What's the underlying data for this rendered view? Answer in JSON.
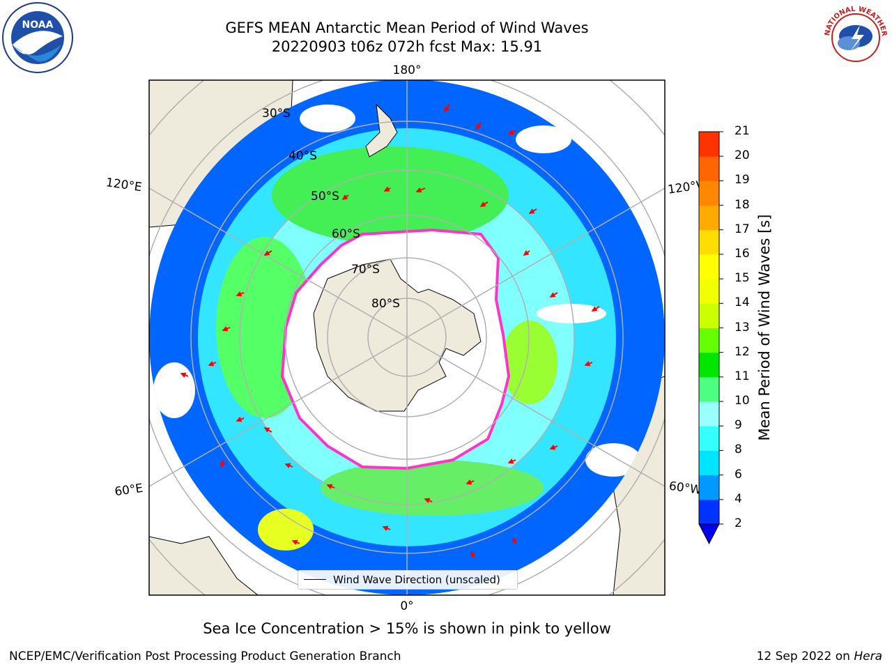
{
  "header": {
    "title_line1": "GEFS MEAN Antarctic Mean Period of Wind Waves",
    "title_line2": "20220903 t06z 072h fcst   Max: 15.91"
  },
  "map": {
    "projection": "south-polar-stereographic",
    "latitude_labels": [
      "30°S",
      "40°S",
      "50°S",
      "60°S",
      "70°S",
      "80°S"
    ],
    "longitude_labels": {
      "top": "180°",
      "bottom": "0°",
      "upper_left": "120°E",
      "upper_right": "120°W",
      "lower_left": "60°E",
      "lower_right": "60°W"
    },
    "colors": {
      "land": "#efebdc",
      "ocean_empty": "#ffffff",
      "grid": "#b0b0b0",
      "arrow": "#ff0000",
      "sea_ice": "#ff33cc"
    }
  },
  "legend": {
    "entry": "Wind Wave Direction (unscaled)"
  },
  "colorbar": {
    "title": "Mean Period of Wind Waves [s]",
    "ticks": [
      "2",
      "4",
      "6",
      "8",
      "9",
      "10",
      "11",
      "12",
      "13",
      "14",
      "15",
      "16",
      "17",
      "18",
      "19",
      "20",
      "21"
    ],
    "colors": [
      "#0033ff",
      "#0099ff",
      "#00e5ff",
      "#33ffff",
      "#99ffff",
      "#4dff80",
      "#00e600",
      "#66ff00",
      "#ccff00",
      "#f2ff00",
      "#ffff00",
      "#ffdd00",
      "#ffaa00",
      "#ff8800",
      "#ff6600",
      "#ff3300",
      "#ff0000"
    ]
  },
  "caption": "Sea Ice Concentration > 15% is shown in pink to yellow",
  "footer": {
    "left": "NCEP/EMC/Verification Post Processing Product Generation Branch",
    "right_date": "12 Sep 2022 on ",
    "right_host": "Hera"
  },
  "logos": {
    "left": "NOAA",
    "right": "NATIONAL WEATHER SERVICE"
  }
}
